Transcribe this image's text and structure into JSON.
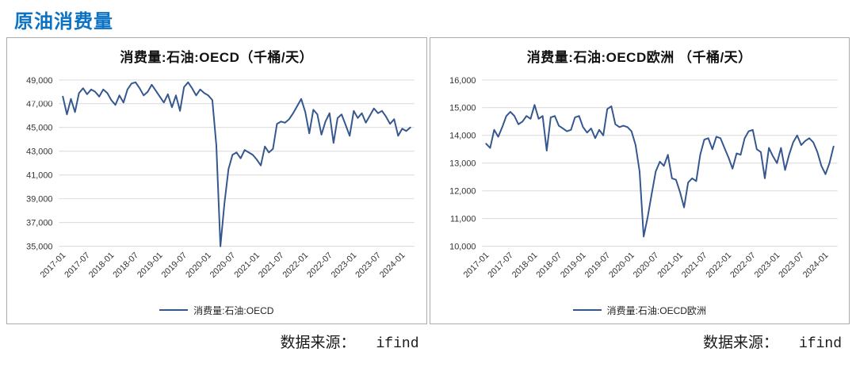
{
  "page": {
    "title": "原油消费量"
  },
  "colors": {
    "accent_title": "#0B72C4",
    "line": "#35578F",
    "grid": "#D9D9D9",
    "axis_text": "#333333",
    "border": "#ABABAB"
  },
  "chart_data": [
    {
      "type": "line",
      "title": "消费量:石油:OECD（千桶/天）",
      "legend": "消费量:石油:OECD",
      "source_label": "数据来源：",
      "source_name": "ifind",
      "ylabel": "千桶/天",
      "ylim": [
        35000,
        49000
      ],
      "ytick_step": 2000,
      "yticks": [
        "35,000",
        "37,000",
        "39,000",
        "41,000",
        "43,000",
        "45,000",
        "47,000",
        "49,000"
      ],
      "xticks": [
        "2017-01",
        "2017-07",
        "2018-01",
        "2018-07",
        "2019-01",
        "2019-07",
        "2020-01",
        "2020-07",
        "2021-01",
        "2021-07",
        "2022-01",
        "2022-07",
        "2023-01",
        "2023-07",
        "2024-01"
      ],
      "x_start": "2017-01",
      "x_tick_every_months": 6,
      "grid": true,
      "legend_position": "bottom",
      "values": [
        47600,
        46100,
        47400,
        46300,
        47900,
        48300,
        47800,
        48200,
        48000,
        47600,
        48200,
        47900,
        47300,
        46900,
        47700,
        47100,
        48200,
        48700,
        48800,
        48300,
        47700,
        48000,
        48600,
        48100,
        47600,
        47100,
        47800,
        46700,
        47700,
        46400,
        48400,
        48800,
        48300,
        47700,
        48200,
        47900,
        47700,
        47300,
        43500,
        35000,
        38600,
        41500,
        42700,
        42900,
        42400,
        43100,
        42900,
        42700,
        42300,
        41800,
        43400,
        42900,
        43200,
        45300,
        45500,
        45400,
        45700,
        46200,
        46800,
        47400,
        46300,
        44500,
        46500,
        46100,
        44400,
        45500,
        46200,
        43700,
        45800,
        46100,
        45200,
        44300,
        46400,
        45800,
        46200,
        45400,
        46000,
        46600,
        46200,
        46400,
        45900,
        45300,
        45700,
        44300,
        44900,
        44700,
        45000
      ]
    },
    {
      "type": "line",
      "title": "消费量:石油:OECD欧洲 （千桶/天）",
      "legend": "消费量:石油:OECD欧洲",
      "source_label": "数据来源：",
      "source_name": "ifind",
      "ylabel": "千桶/天",
      "ylim": [
        10000,
        16000
      ],
      "ytick_step": 1000,
      "yticks": [
        "10,000",
        "11,000",
        "12,000",
        "13,000",
        "14,000",
        "15,000",
        "16,000"
      ],
      "xticks": [
        "2017-01",
        "2017-07",
        "2018-01",
        "2018-07",
        "2019-01",
        "2019-07",
        "2020-01",
        "2020-07",
        "2021-01",
        "2021-07",
        "2022-01",
        "2022-07",
        "2023-01",
        "2023-07",
        "2024-01"
      ],
      "x_start": "2017-01",
      "x_tick_every_months": 6,
      "grid": true,
      "legend_position": "bottom",
      "values": [
        13700,
        13550,
        14200,
        13950,
        14300,
        14700,
        14850,
        14700,
        14400,
        14500,
        14700,
        14600,
        15100,
        14600,
        14700,
        13450,
        14650,
        14700,
        14350,
        14250,
        14150,
        14200,
        14650,
        14700,
        14300,
        14100,
        14250,
        13900,
        14200,
        14000,
        14950,
        15050,
        14400,
        14300,
        14350,
        14300,
        14150,
        13650,
        12700,
        10350,
        11050,
        11900,
        12700,
        13050,
        12900,
        13300,
        12450,
        12400,
        11950,
        11400,
        12300,
        12450,
        12350,
        13300,
        13850,
        13900,
        13500,
        13950,
        13900,
        13550,
        13200,
        12800,
        13350,
        13300,
        13900,
        14150,
        14200,
        13500,
        13400,
        12450,
        13550,
        13250,
        13000,
        13550,
        12750,
        13300,
        13750,
        14000,
        13650,
        13800,
        13900,
        13750,
        13400,
        12900,
        12600,
        13000,
        13600
      ]
    }
  ]
}
